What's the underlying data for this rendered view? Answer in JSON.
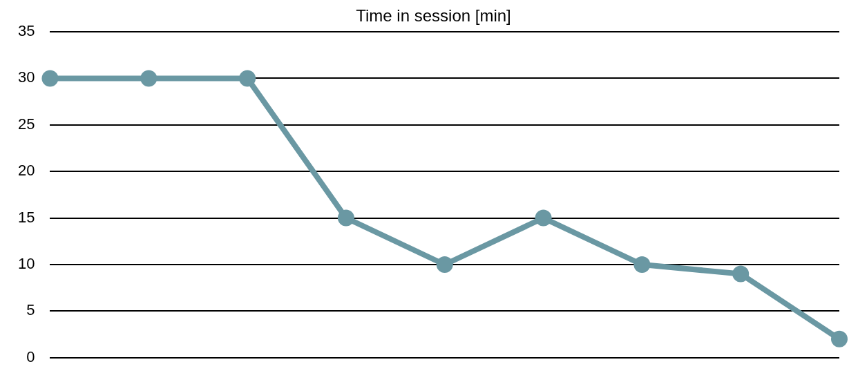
{
  "chart_data": {
    "type": "line",
    "categories": [
      null,
      null,
      null,
      null,
      null,
      null,
      null,
      null,
      null
    ],
    "series": [
      {
        "name": "Time in session [min]",
        "color": "#6a98a3",
        "values": [
          30,
          30,
          30,
          15,
          10,
          15,
          10,
          9,
          2
        ]
      }
    ],
    "ylim": [
      0,
      35
    ],
    "yticks": [
      0,
      5,
      10,
      15,
      20,
      25,
      30,
      35
    ],
    "grid": "y",
    "legend": "top",
    "tick_labels": "y",
    "marker": "circle",
    "line_style": "solid"
  }
}
